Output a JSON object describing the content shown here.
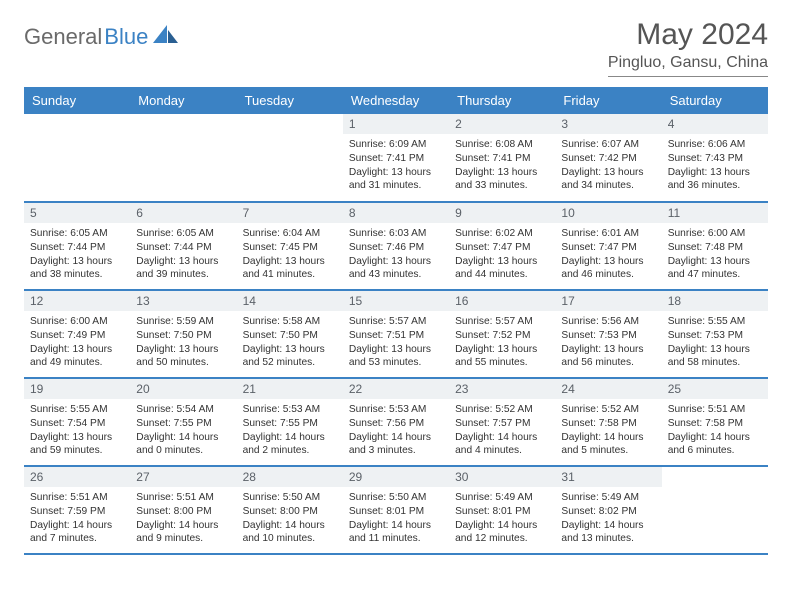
{
  "logo": {
    "part1": "General",
    "part2": "Blue"
  },
  "title": "May 2024",
  "location": "Pingluo, Gansu, China",
  "colors": {
    "header_bg": "#3b82c4",
    "header_fg": "#ffffff",
    "daynum_bg": "#eef1f3",
    "daynum_fg": "#5b6168",
    "row_divider": "#3b82c4",
    "title_color": "#555555",
    "body_text": "#333333"
  },
  "day_labels": [
    "Sunday",
    "Monday",
    "Tuesday",
    "Wednesday",
    "Thursday",
    "Friday",
    "Saturday"
  ],
  "weeks": [
    [
      {
        "n": "",
        "sr": "",
        "ss": "",
        "dl": "",
        "empty": true
      },
      {
        "n": "",
        "sr": "",
        "ss": "",
        "dl": "",
        "empty": true
      },
      {
        "n": "",
        "sr": "",
        "ss": "",
        "dl": "",
        "empty": true
      },
      {
        "n": "1",
        "sr": "Sunrise: 6:09 AM",
        "ss": "Sunset: 7:41 PM",
        "dl": "Daylight: 13 hours and 31 minutes."
      },
      {
        "n": "2",
        "sr": "Sunrise: 6:08 AM",
        "ss": "Sunset: 7:41 PM",
        "dl": "Daylight: 13 hours and 33 minutes."
      },
      {
        "n": "3",
        "sr": "Sunrise: 6:07 AM",
        "ss": "Sunset: 7:42 PM",
        "dl": "Daylight: 13 hours and 34 minutes."
      },
      {
        "n": "4",
        "sr": "Sunrise: 6:06 AM",
        "ss": "Sunset: 7:43 PM",
        "dl": "Daylight: 13 hours and 36 minutes."
      }
    ],
    [
      {
        "n": "5",
        "sr": "Sunrise: 6:05 AM",
        "ss": "Sunset: 7:44 PM",
        "dl": "Daylight: 13 hours and 38 minutes."
      },
      {
        "n": "6",
        "sr": "Sunrise: 6:05 AM",
        "ss": "Sunset: 7:44 PM",
        "dl": "Daylight: 13 hours and 39 minutes."
      },
      {
        "n": "7",
        "sr": "Sunrise: 6:04 AM",
        "ss": "Sunset: 7:45 PM",
        "dl": "Daylight: 13 hours and 41 minutes."
      },
      {
        "n": "8",
        "sr": "Sunrise: 6:03 AM",
        "ss": "Sunset: 7:46 PM",
        "dl": "Daylight: 13 hours and 43 minutes."
      },
      {
        "n": "9",
        "sr": "Sunrise: 6:02 AM",
        "ss": "Sunset: 7:47 PM",
        "dl": "Daylight: 13 hours and 44 minutes."
      },
      {
        "n": "10",
        "sr": "Sunrise: 6:01 AM",
        "ss": "Sunset: 7:47 PM",
        "dl": "Daylight: 13 hours and 46 minutes."
      },
      {
        "n": "11",
        "sr": "Sunrise: 6:00 AM",
        "ss": "Sunset: 7:48 PM",
        "dl": "Daylight: 13 hours and 47 minutes."
      }
    ],
    [
      {
        "n": "12",
        "sr": "Sunrise: 6:00 AM",
        "ss": "Sunset: 7:49 PM",
        "dl": "Daylight: 13 hours and 49 minutes."
      },
      {
        "n": "13",
        "sr": "Sunrise: 5:59 AM",
        "ss": "Sunset: 7:50 PM",
        "dl": "Daylight: 13 hours and 50 minutes."
      },
      {
        "n": "14",
        "sr": "Sunrise: 5:58 AM",
        "ss": "Sunset: 7:50 PM",
        "dl": "Daylight: 13 hours and 52 minutes."
      },
      {
        "n": "15",
        "sr": "Sunrise: 5:57 AM",
        "ss": "Sunset: 7:51 PM",
        "dl": "Daylight: 13 hours and 53 minutes."
      },
      {
        "n": "16",
        "sr": "Sunrise: 5:57 AM",
        "ss": "Sunset: 7:52 PM",
        "dl": "Daylight: 13 hours and 55 minutes."
      },
      {
        "n": "17",
        "sr": "Sunrise: 5:56 AM",
        "ss": "Sunset: 7:53 PM",
        "dl": "Daylight: 13 hours and 56 minutes."
      },
      {
        "n": "18",
        "sr": "Sunrise: 5:55 AM",
        "ss": "Sunset: 7:53 PM",
        "dl": "Daylight: 13 hours and 58 minutes."
      }
    ],
    [
      {
        "n": "19",
        "sr": "Sunrise: 5:55 AM",
        "ss": "Sunset: 7:54 PM",
        "dl": "Daylight: 13 hours and 59 minutes."
      },
      {
        "n": "20",
        "sr": "Sunrise: 5:54 AM",
        "ss": "Sunset: 7:55 PM",
        "dl": "Daylight: 14 hours and 0 minutes."
      },
      {
        "n": "21",
        "sr": "Sunrise: 5:53 AM",
        "ss": "Sunset: 7:55 PM",
        "dl": "Daylight: 14 hours and 2 minutes."
      },
      {
        "n": "22",
        "sr": "Sunrise: 5:53 AM",
        "ss": "Sunset: 7:56 PM",
        "dl": "Daylight: 14 hours and 3 minutes."
      },
      {
        "n": "23",
        "sr": "Sunrise: 5:52 AM",
        "ss": "Sunset: 7:57 PM",
        "dl": "Daylight: 14 hours and 4 minutes."
      },
      {
        "n": "24",
        "sr": "Sunrise: 5:52 AM",
        "ss": "Sunset: 7:58 PM",
        "dl": "Daylight: 14 hours and 5 minutes."
      },
      {
        "n": "25",
        "sr": "Sunrise: 5:51 AM",
        "ss": "Sunset: 7:58 PM",
        "dl": "Daylight: 14 hours and 6 minutes."
      }
    ],
    [
      {
        "n": "26",
        "sr": "Sunrise: 5:51 AM",
        "ss": "Sunset: 7:59 PM",
        "dl": "Daylight: 14 hours and 7 minutes."
      },
      {
        "n": "27",
        "sr": "Sunrise: 5:51 AM",
        "ss": "Sunset: 8:00 PM",
        "dl": "Daylight: 14 hours and 9 minutes."
      },
      {
        "n": "28",
        "sr": "Sunrise: 5:50 AM",
        "ss": "Sunset: 8:00 PM",
        "dl": "Daylight: 14 hours and 10 minutes."
      },
      {
        "n": "29",
        "sr": "Sunrise: 5:50 AM",
        "ss": "Sunset: 8:01 PM",
        "dl": "Daylight: 14 hours and 11 minutes."
      },
      {
        "n": "30",
        "sr": "Sunrise: 5:49 AM",
        "ss": "Sunset: 8:01 PM",
        "dl": "Daylight: 14 hours and 12 minutes."
      },
      {
        "n": "31",
        "sr": "Sunrise: 5:49 AM",
        "ss": "Sunset: 8:02 PM",
        "dl": "Daylight: 14 hours and 13 minutes."
      },
      {
        "n": "",
        "sr": "",
        "ss": "",
        "dl": "",
        "empty": true
      }
    ]
  ]
}
